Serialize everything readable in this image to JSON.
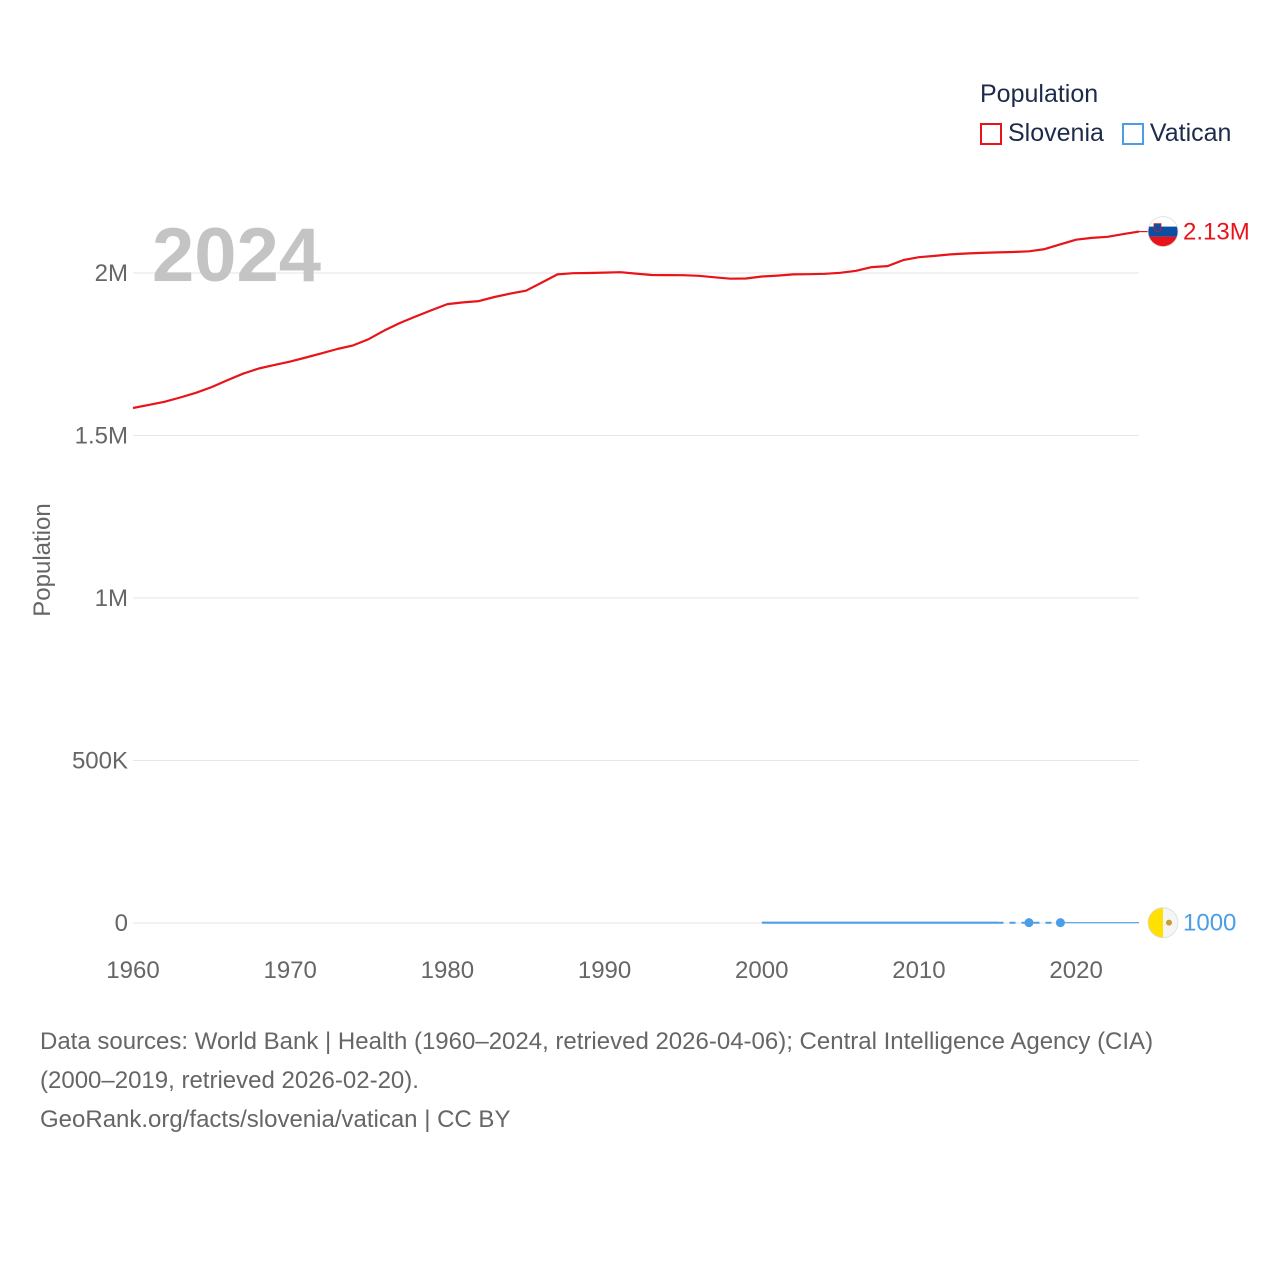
{
  "chart_data": {
    "type": "line",
    "year_label": "2024",
    "ylabel": "Population",
    "xlim": [
      1960,
      2024
    ],
    "ylim": [
      0,
      2200000
    ],
    "x_ticks": [
      {
        "value": 1960,
        "label": "1960"
      },
      {
        "value": 1970,
        "label": "1970"
      },
      {
        "value": 1980,
        "label": "1980"
      },
      {
        "value": 1990,
        "label": "1990"
      },
      {
        "value": 2000,
        "label": "2000"
      },
      {
        "value": 2010,
        "label": "2010"
      },
      {
        "value": 2020,
        "label": "2020"
      }
    ],
    "y_ticks": [
      {
        "value": 0,
        "label": "0"
      },
      {
        "value": 500000,
        "label": "500K"
      },
      {
        "value": 1000000,
        "label": "1M"
      },
      {
        "value": 1500000,
        "label": "1.5M"
      },
      {
        "value": 2000000,
        "label": "2M"
      }
    ],
    "grid": true,
    "legend": {
      "title": "Population",
      "placement": "top-right"
    },
    "series": [
      {
        "name": "Slovenia",
        "color": "#e8141a",
        "end_label": "2.13M",
        "flag_icon": "slovenia-flag-icon",
        "x": [
          1960,
          1961,
          1962,
          1963,
          1964,
          1965,
          1966,
          1967,
          1968,
          1969,
          1970,
          1971,
          1972,
          1973,
          1974,
          1975,
          1976,
          1977,
          1978,
          1979,
          1980,
          1981,
          1982,
          1983,
          1984,
          1985,
          1986,
          1987,
          1988,
          1989,
          1990,
          1991,
          1992,
          1993,
          1994,
          1995,
          1996,
          1997,
          1998,
          1999,
          2000,
          2001,
          2002,
          2003,
          2004,
          2005,
          2006,
          2007,
          2008,
          2009,
          2010,
          2011,
          2012,
          2013,
          2014,
          2015,
          2016,
          2017,
          2018,
          2019,
          2020,
          2021,
          2022,
          2023,
          2024
        ],
        "values": [
          1584720,
          1594131,
          1603649,
          1616971,
          1631400,
          1649038,
          1669962,
          1690246,
          1706185,
          1717190,
          1727234,
          1740046,
          1752983,
          1766287,
          1777100,
          1796700,
          1823375,
          1846500,
          1866400,
          1885800,
          1904200,
          1909600,
          1913500,
          1926300,
          1936500,
          1945500,
          1970400,
          1995600,
          1999400,
          1999980,
          2001180,
          2002400,
          1998160,
          1993900,
          1993400,
          1993330,
          1991480,
          1986850,
          1982600,
          1983000,
          1989240,
          1992060,
          1995700,
          1996430,
          1997590,
          2000470,
          2006870,
          2018120,
          2021320,
          2039670,
          2048580,
          2052500,
          2057160,
          2059950,
          2061980,
          2063530,
          2064490,
          2066620,
          2073480,
          2088380,
          2102420,
          2108080,
          2111460,
          2119840,
          2127400
        ]
      },
      {
        "name": "Vatican",
        "color": "#4a9ee8",
        "end_label": "1000",
        "flag_icon": "vatican-flag-icon",
        "x": [
          2000,
          2001,
          2002,
          2003,
          2004,
          2005,
          2006,
          2007,
          2008,
          2009,
          2010,
          2011,
          2012,
          2013,
          2014,
          2015,
          2017,
          2019,
          2024
        ],
        "values": [
          890,
          890,
          900,
          911,
          921,
          932,
          920,
          821,
          824,
          826,
          829,
          832,
          836,
          839,
          842,
          842,
          1000,
          1000,
          1000
        ],
        "gap_after": 2015,
        "points": [
          {
            "x": 2017,
            "value": 1000
          },
          {
            "x": 2019,
            "value": 1000
          }
        ]
      }
    ]
  },
  "footer": {
    "source_line1": "Data sources: World Bank | Health (1960–2024, retrieved 2026-04-06); Central Intelligence Agency (CIA)",
    "source_line2": "(2000–2019, retrieved 2026-02-20).",
    "credit": "GeoRank.org/facts/slovenia/vatican | CC BY"
  },
  "colors": {
    "grid": "#e6e6e6",
    "tick_text": "#666666",
    "year_watermark": "#c4c4c4",
    "legend_text": "#1d2b4a"
  }
}
